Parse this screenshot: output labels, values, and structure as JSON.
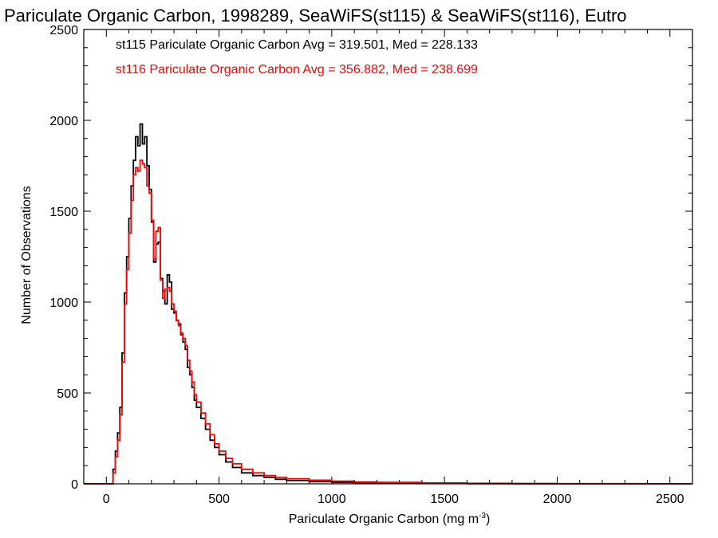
{
  "chart_data": {
    "type": "line",
    "title": "Pariculate Organic Carbon, 1998289, SeaWiFS(st115) & SeaWiFS(st116), Eutro",
    "xlabel": "Pariculate Organic Carbon (mg m",
    "xlabel_sup": "-3",
    "xlabel_close": ")",
    "ylabel": "Number of Observations",
    "xlim": [
      -100,
      2600
    ],
    "ylim": [
      0,
      2500
    ],
    "xticks": [
      0,
      500,
      1000,
      1500,
      2000,
      2500
    ],
    "yticks": [
      0,
      500,
      1000,
      1500,
      2000,
      2500
    ],
    "grid": false,
    "step": true,
    "annotations": [
      {
        "text": "st115 Pariculate Organic Carbon Avg = 319.501, Med = 228.133",
        "color": "#000000"
      },
      {
        "text": "st116 Pariculate Organic Carbon Avg = 356.882, Med = 238.699",
        "color": "#ff0000"
      }
    ],
    "series": [
      {
        "color": "#000000",
        "x": [
          -100,
          20,
          30,
          40,
          50,
          60,
          70,
          80,
          90,
          100,
          110,
          120,
          130,
          140,
          150,
          160,
          170,
          180,
          190,
          200,
          210,
          220,
          230,
          240,
          250,
          260,
          270,
          280,
          290,
          300,
          310,
          320,
          330,
          340,
          350,
          360,
          370,
          380,
          390,
          400,
          420,
          440,
          460,
          480,
          500,
          530,
          560,
          600,
          650,
          700,
          750,
          800,
          900,
          1000,
          1100,
          1200,
          1400,
          1600,
          1800,
          2000,
          2200,
          2400,
          2600
        ],
        "y": [
          0,
          0,
          80,
          180,
          280,
          420,
          720,
          1050,
          1250,
          1460,
          1640,
          1780,
          1910,
          1860,
          1980,
          1870,
          1910,
          1750,
          1620,
          1440,
          1220,
          1320,
          1330,
          1130,
          1060,
          990,
          1150,
          1110,
          960,
          940,
          900,
          880,
          820,
          780,
          740,
          640,
          600,
          530,
          460,
          420,
          360,
          300,
          240,
          200,
          160,
          120,
          90,
          60,
          45,
          35,
          25,
          18,
          12,
          8,
          5,
          3,
          2,
          1,
          0,
          0,
          0,
          0,
          0
        ]
      },
      {
        "color": "#ff0000",
        "x": [
          -100,
          20,
          30,
          40,
          50,
          60,
          70,
          80,
          90,
          100,
          110,
          120,
          130,
          140,
          150,
          160,
          170,
          180,
          190,
          200,
          210,
          220,
          230,
          240,
          250,
          260,
          270,
          280,
          290,
          300,
          310,
          320,
          330,
          340,
          350,
          360,
          370,
          380,
          390,
          400,
          420,
          440,
          460,
          480,
          500,
          530,
          560,
          600,
          650,
          700,
          750,
          800,
          900,
          1000,
          1100,
          1200,
          1400,
          1600,
          1800,
          2000,
          2200,
          2400,
          2600
        ],
        "y": [
          0,
          0,
          60,
          150,
          240,
          380,
          670,
          990,
          1180,
          1380,
          1560,
          1700,
          1740,
          1720,
          1780,
          1760,
          1740,
          1640,
          1600,
          1450,
          1240,
          1390,
          1410,
          1120,
          1020,
          1070,
          1080,
          1060,
          990,
          950,
          900,
          870,
          830,
          800,
          760,
          680,
          620,
          560,
          490,
          450,
          390,
          330,
          270,
          220,
          180,
          140,
          110,
          80,
          60,
          45,
          35,
          28,
          20,
          15,
          10,
          8,
          5,
          3,
          2,
          1,
          1,
          0,
          0
        ]
      }
    ]
  }
}
